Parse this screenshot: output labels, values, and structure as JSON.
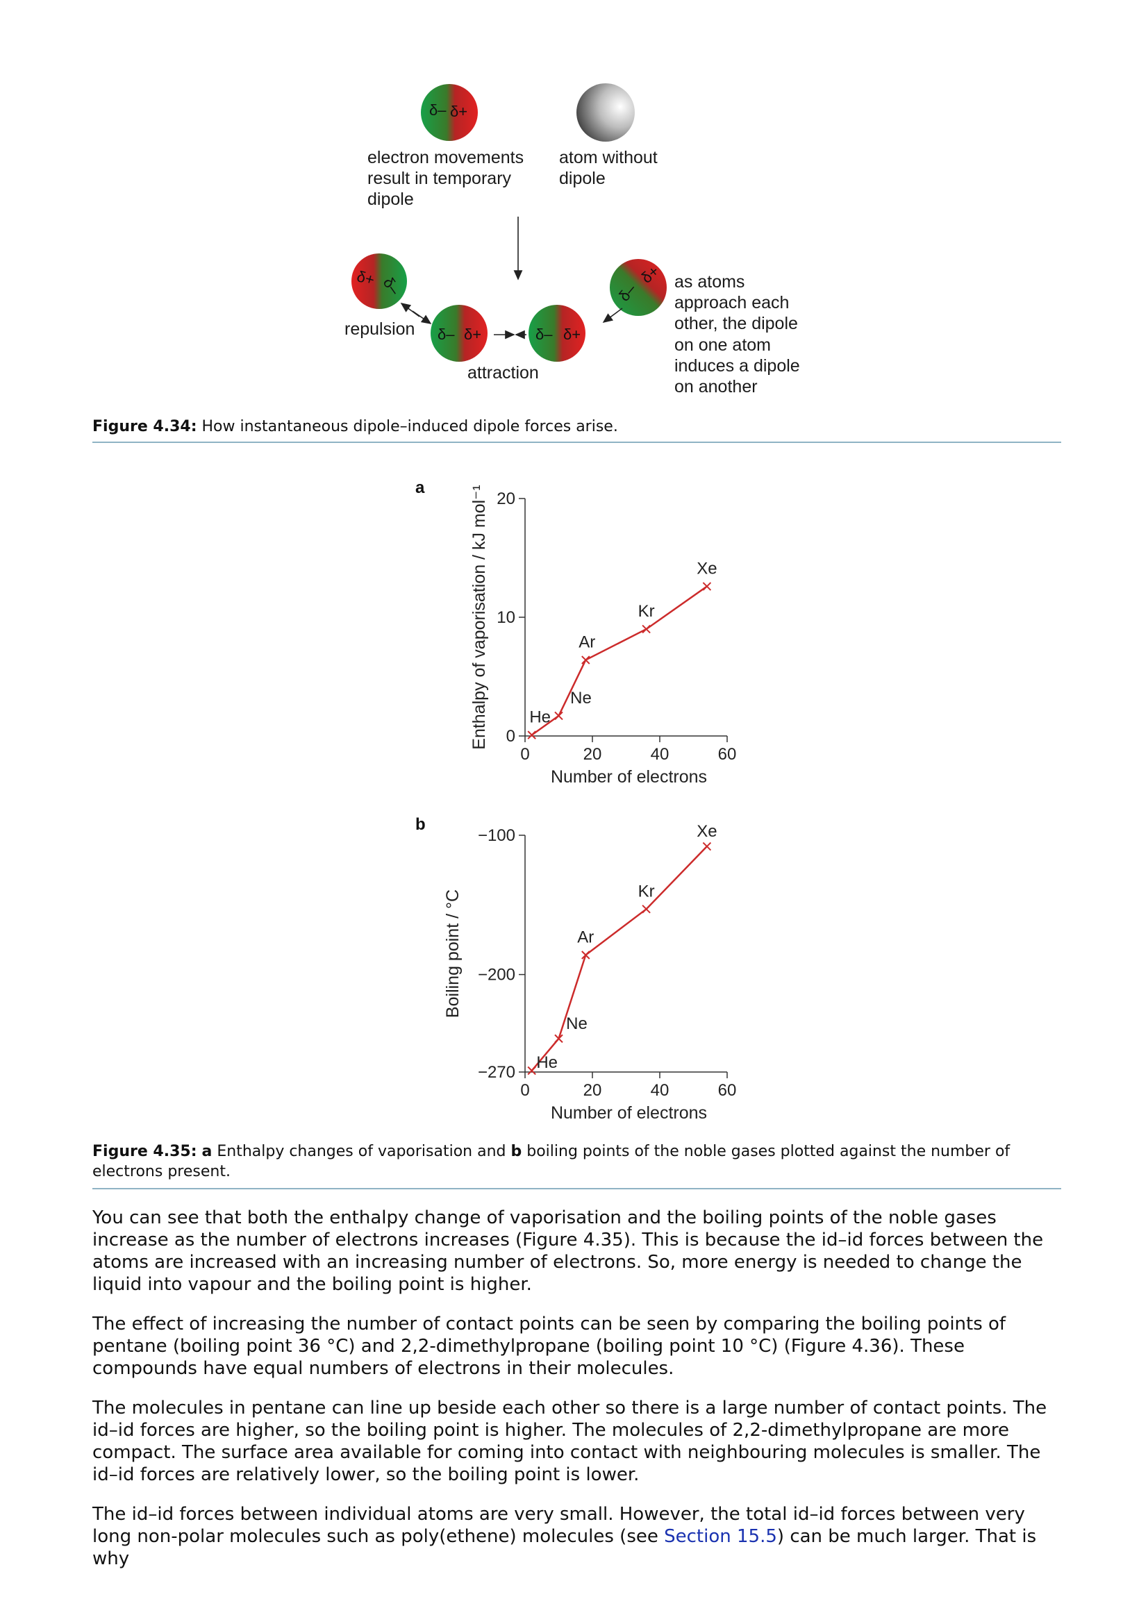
{
  "figure_434": {
    "caption_label": "Figure 4.34:",
    "caption_text": " How instantaneous dipole–induced dipole forces arise.",
    "labels": {
      "temp_dipole_line1": "electron movements",
      "temp_dipole_line2": "result in temporary",
      "temp_dipole_line3": "dipole",
      "no_dipole_line1": "atom without",
      "no_dipole_line2": "dipole",
      "repulsion": "repulsion",
      "attraction": "attraction",
      "induce_line1": "as atoms",
      "induce_line2": "approach each",
      "induce_line3": "other, the dipole",
      "induce_line4": "on one atom",
      "induce_line5": "induces a dipole",
      "induce_line6": "on another"
    },
    "symbols": {
      "delta_minus": "δ–",
      "delta_plus": "δ+"
    }
  },
  "figure_435": {
    "caption_label": "Figure 4.35:",
    "caption_a": "a",
    "caption_mid": " Enthalpy changes of vaporisation and ",
    "caption_b": "b",
    "caption_end": " boiling points of the noble gases plotted against the number of electrons present."
  },
  "chart_data": [
    {
      "type": "line",
      "panel": "a",
      "xlabel": "Number of electrons",
      "ylabel": "Enthalpy of vaporisation / kJ mol⁻¹",
      "xlim": [
        0,
        60
      ],
      "ylim": [
        0,
        20
      ],
      "xticks": [
        "0",
        "20",
        "40",
        "60"
      ],
      "yticks": [
        "0",
        "10",
        "20"
      ],
      "points": [
        {
          "label": "He",
          "x": 2,
          "y": 0.08
        },
        {
          "label": "Ne",
          "x": 10,
          "y": 1.7
        },
        {
          "label": "Ar",
          "x": 18,
          "y": 6.4
        },
        {
          "label": "Kr",
          "x": 36,
          "y": 9.0
        },
        {
          "label": "Xe",
          "x": 54,
          "y": 12.6
        }
      ],
      "color": "#cc2b2b"
    },
    {
      "type": "line",
      "panel": "b",
      "xlabel": "Number of electrons",
      "ylabel": "Boiling point / °C",
      "xlim": [
        0,
        60
      ],
      "ylim": [
        -270,
        -100
      ],
      "xticks": [
        "0",
        "20",
        "40",
        "60"
      ],
      "yticks": [
        "−100",
        "−200",
        "−270"
      ],
      "points": [
        {
          "label": "He",
          "x": 2,
          "y": -269
        },
        {
          "label": "Ne",
          "x": 10,
          "y": -246
        },
        {
          "label": "Ar",
          "x": 18,
          "y": -186
        },
        {
          "label": "Kr",
          "x": 36,
          "y": -153
        },
        {
          "label": "Xe",
          "x": 54,
          "y": -108
        }
      ],
      "color": "#cc2b2b"
    }
  ],
  "body": {
    "p1": "You can see that both the enthalpy change of vaporisation and the boiling points of the noble gases increase as the number of electrons increases (Figure 4.35). This is because the id–id forces between the atoms are increased with an increasing number of electrons. So, more energy is needed to change the liquid into vapour and the boiling point is higher.",
    "p2": "The effect of increasing the number of contact points can be seen by comparing the boiling points of pentane (boiling point 36 °C) and 2,2-dimethylpropane (boiling point 10 °C) (Figure 4.36). These compounds have equal numbers of electrons in their molecules.",
    "p3": "The molecules in pentane can line up beside each other so there is a large number of contact points. The id–id forces are higher, so the boiling point is higher. The molecules of 2,2-dimethylpropane are more compact. The surface area available for coming into contact with neighbouring molecules is smaller. The id–id forces are relatively lower, so the boiling point is lower.",
    "p4_start": "The id–id forces between individual atoms are very small. However, the total id–id forces between very long non-polar molecules such as poly(ethene) molecules (see ",
    "p4_link": "Section 15.5",
    "p4_end": ") can be much larger. That is why"
  }
}
